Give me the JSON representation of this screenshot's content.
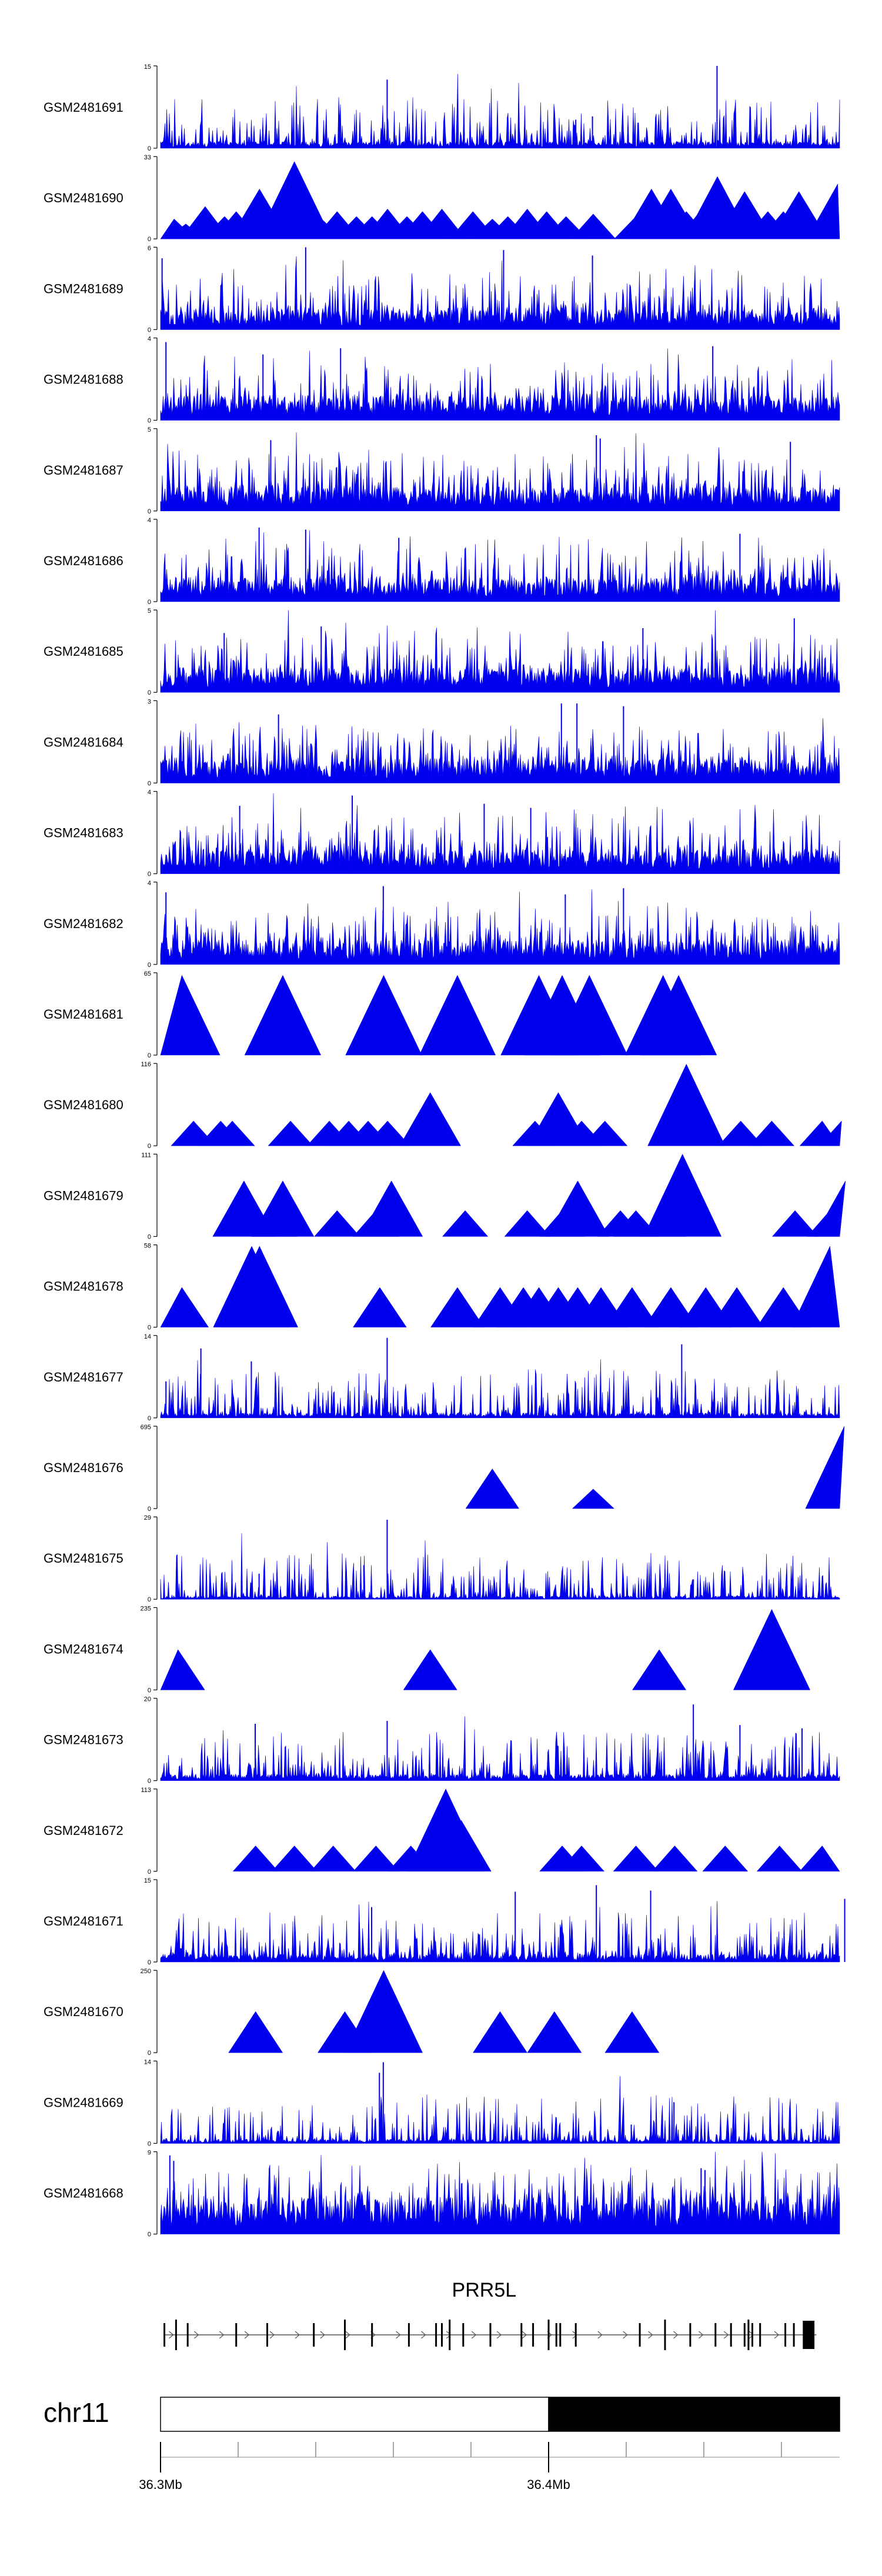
{
  "colors": {
    "signal": "#0000EE",
    "axis": "#000000",
    "gene": "#000000",
    "intron": "#555555",
    "chrom_band_dark": "#000000",
    "chrom_band_light": "#ffffff",
    "tick": "#888888"
  },
  "chart_data": {
    "type": "area",
    "title": "",
    "xlabel": "",
    "ylabel": "",
    "x_range_mb": [
      36.3,
      36.475
    ],
    "series": [
      {
        "name": "GSM2481691",
        "ymax": "15",
        "ylim": [
          0,
          15
        ],
        "mode": "dense",
        "seed": 11,
        "base": 0.08,
        "spikes": [
          [
            36.3584,
            12.5
          ],
          [
            36.4434,
            15
          ],
          [
            36.4113,
            5.8
          ],
          [
            36.407,
            5.2
          ]
        ]
      },
      {
        "name": "GSM2481690",
        "ymax": "33",
        "ylim": [
          0,
          33
        ],
        "mode": "peaks",
        "peaks": [
          [
            36.3035,
            8
          ],
          [
            36.3065,
            6
          ],
          [
            36.3085,
            5
          ],
          [
            36.3115,
            13
          ],
          [
            36.3145,
            4
          ],
          [
            36.3165,
            9
          ],
          [
            36.3195,
            11
          ],
          [
            36.3225,
            6
          ],
          [
            36.3255,
            20
          ],
          [
            36.3305,
            7
          ],
          [
            36.3345,
            31
          ],
          [
            36.3375,
            12
          ],
          [
            36.3415,
            8
          ],
          [
            36.3455,
            11
          ],
          [
            36.3505,
            9
          ],
          [
            36.3545,
            9
          ],
          [
            36.3585,
            12
          ],
          [
            36.3635,
            9
          ],
          [
            36.3675,
            11
          ],
          [
            36.3725,
            12
          ],
          [
            36.3805,
            11
          ],
          [
            36.3855,
            8
          ],
          [
            36.3895,
            9
          ],
          [
            36.3945,
            12
          ],
          [
            36.3995,
            11
          ],
          [
            36.4045,
            9
          ],
          [
            36.4115,
            10
          ],
          [
            36.4225,
            9
          ],
          [
            36.4265,
            20
          ],
          [
            36.4315,
            20
          ],
          [
            36.4355,
            11
          ],
          [
            36.4395,
            12
          ],
          [
            36.4435,
            25
          ],
          [
            36.4465,
            11
          ],
          [
            36.4505,
            19
          ],
          [
            36.4565,
            11
          ],
          [
            36.4605,
            11
          ],
          [
            36.4645,
            19
          ],
          [
            36.4705,
            9
          ],
          [
            36.4745,
            22
          ]
        ]
      },
      {
        "name": "GSM2481689",
        "ymax": "6",
        "ylim": [
          0,
          6
        ],
        "mode": "dense",
        "seed": 23,
        "base": 0.25,
        "spikes": [
          [
            36.3374,
            6
          ],
          [
            36.3884,
            5.8
          ],
          [
            36.4113,
            5.4
          ],
          [
            36.3004,
            5.2
          ]
        ]
      },
      {
        "name": "GSM2481688",
        "ymax": "4",
        "ylim": [
          0,
          4
        ],
        "mode": "dense",
        "seed": 31,
        "base": 0.3,
        "spikes": [
          [
            36.3014,
            3.8
          ],
          [
            36.3464,
            3.5
          ],
          [
            36.4423,
            3.6
          ],
          [
            36.3264,
            3.2
          ]
        ]
      },
      {
        "name": "GSM2481687",
        "ymax": "5",
        "ylim": [
          0,
          5
        ],
        "mode": "dense",
        "seed": 37,
        "base": 0.3,
        "spikes": [
          [
            36.4123,
            4.6
          ],
          [
            36.4133,
            4.4
          ],
          [
            36.3284,
            4.3
          ],
          [
            36.4623,
            4.2
          ]
        ]
      },
      {
        "name": "GSM2481686",
        "ymax": "4",
        "ylim": [
          0,
          4
        ],
        "mode": "dense",
        "seed": 41,
        "base": 0.3,
        "spikes": [
          [
            36.3254,
            3.6
          ],
          [
            36.3374,
            3.5
          ],
          [
            36.4493,
            3.3
          ],
          [
            36.3614,
            3.1
          ]
        ]
      },
      {
        "name": "GSM2481685",
        "ymax": "5",
        "ylim": [
          0,
          5
        ],
        "mode": "dense",
        "seed": 43,
        "base": 0.3,
        "spikes": [
          [
            36.4633,
            4.5
          ],
          [
            36.3414,
            4.0
          ],
          [
            36.4243,
            3.9
          ],
          [
            36.3164,
            3.6
          ]
        ]
      },
      {
        "name": "GSM2481684",
        "ymax": "3",
        "ylim": [
          0,
          3
        ],
        "mode": "dense",
        "seed": 47,
        "base": 0.3,
        "spikes": [
          [
            36.4033,
            2.9
          ],
          [
            36.4073,
            2.9
          ],
          [
            36.4193,
            2.8
          ],
          [
            36.3304,
            2.5
          ]
        ]
      },
      {
        "name": "GSM2481683",
        "ymax": "4",
        "ylim": [
          0,
          4
        ],
        "mode": "dense",
        "seed": 53,
        "base": 0.3,
        "spikes": [
          [
            36.3494,
            3.8
          ],
          [
            36.3834,
            3.4
          ],
          [
            36.3954,
            3.2
          ],
          [
            36.3204,
            3.3
          ]
        ]
      },
      {
        "name": "GSM2481682",
        "ymax": "4",
        "ylim": [
          0,
          4
        ],
        "mode": "dense",
        "seed": 59,
        "base": 0.3,
        "spikes": [
          [
            36.3574,
            3.8
          ],
          [
            36.4193,
            3.7
          ],
          [
            36.4043,
            3.4
          ],
          [
            36.3014,
            3.5
          ]
        ]
      },
      {
        "name": "GSM2481681",
        "ymax": "65",
        "ylim": [
          0,
          65
        ],
        "mode": "peaks",
        "peaks": [
          [
            36.3055,
            63
          ],
          [
            36.3315,
            63
          ],
          [
            36.3575,
            63
          ],
          [
            36.3765,
            63
          ],
          [
            36.3975,
            63
          ],
          [
            36.4035,
            63
          ],
          [
            36.4105,
            63
          ],
          [
            36.4295,
            63
          ],
          [
            36.4335,
            63
          ]
        ]
      },
      {
        "name": "GSM2481680",
        "ymax": "116",
        "ylim": [
          0,
          116
        ],
        "mode": "peaks",
        "peaks": [
          [
            36.3085,
            35
          ],
          [
            36.3155,
            35
          ],
          [
            36.3185,
            35
          ],
          [
            36.3335,
            35
          ],
          [
            36.3435,
            35
          ],
          [
            36.3485,
            35
          ],
          [
            36.3535,
            35
          ],
          [
            36.3585,
            35
          ],
          [
            36.3695,
            75
          ],
          [
            36.3965,
            35
          ],
          [
            36.4025,
            75
          ],
          [
            36.4085,
            35
          ],
          [
            36.4145,
            35
          ],
          [
            36.4355,
            115
          ],
          [
            36.4495,
            35
          ],
          [
            36.4575,
            35
          ],
          [
            36.4705,
            35
          ],
          [
            36.4755,
            35
          ]
        ]
      },
      {
        "name": "GSM2481679",
        "ymax": "111",
        "ylim": [
          0,
          111
        ],
        "mode": "peaks",
        "peaks": [
          [
            36.3215,
            75
          ],
          [
            36.3295,
            35
          ],
          [
            36.3315,
            75
          ],
          [
            36.3455,
            35
          ],
          [
            36.3555,
            35
          ],
          [
            36.3595,
            75
          ],
          [
            36.3785,
            35
          ],
          [
            36.3945,
            35
          ],
          [
            36.4035,
            35
          ],
          [
            36.4075,
            75
          ],
          [
            36.4185,
            35
          ],
          [
            36.4225,
            35
          ],
          [
            36.4295,
            35
          ],
          [
            36.4345,
            111
          ],
          [
            36.4635,
            35
          ],
          [
            36.4725,
            35
          ],
          [
            36.4765,
            75
          ]
        ]
      },
      {
        "name": "GSM2481678",
        "ymax": "58",
        "ylim": [
          0,
          58
        ],
        "mode": "peaks",
        "peaks": [
          [
            36.3055,
            28
          ],
          [
            36.3235,
            57
          ],
          [
            36.3255,
            57
          ],
          [
            36.3565,
            28
          ],
          [
            36.3765,
            28
          ],
          [
            36.3875,
            28
          ],
          [
            36.3935,
            28
          ],
          [
            36.3975,
            28
          ],
          [
            36.4025,
            28
          ],
          [
            36.4075,
            28
          ],
          [
            36.4135,
            28
          ],
          [
            36.4215,
            28
          ],
          [
            36.4315,
            28
          ],
          [
            36.4405,
            28
          ],
          [
            36.4485,
            28
          ],
          [
            36.4605,
            28
          ],
          [
            36.4725,
            57
          ]
        ]
      },
      {
        "name": "GSM2481677",
        "ymax": "14",
        "ylim": [
          0,
          14
        ],
        "mode": "dense",
        "seed": 61,
        "base": 0.06,
        "spikes": [
          [
            36.3584,
            13.6
          ],
          [
            36.4343,
            12.5
          ],
          [
            36.3104,
            11.8
          ],
          [
            36.3234,
            9.6
          ],
          [
            36.3014,
            6.2
          ]
        ]
      },
      {
        "name": "GSM2481676",
        "ymax": "695",
        "ylim": [
          0,
          695
        ],
        "mode": "peaks",
        "peaks": [
          [
            36.3855,
            335
          ],
          [
            36.4115,
            165
          ],
          [
            36.4762,
            695
          ]
        ]
      },
      {
        "name": "GSM2481675",
        "ymax": "29",
        "ylim": [
          0,
          29
        ],
        "mode": "dense",
        "seed": 67,
        "base": 0.04,
        "spikes": [
          [
            36.3584,
            28
          ],
          [
            36.3524,
            12
          ],
          [
            36.3254,
            9
          ],
          [
            36.4373,
            7
          ]
        ]
      },
      {
        "name": "GSM2481674",
        "ymax": "235",
        "ylim": [
          0,
          235
        ],
        "mode": "peaks",
        "peaks": [
          [
            36.3045,
            115
          ],
          [
            36.3695,
            115
          ],
          [
            36.4285,
            115
          ],
          [
            36.4575,
            230
          ]
        ]
      },
      {
        "name": "GSM2481673",
        "ymax": "20",
        "ylim": [
          0,
          20
        ],
        "mode": "dense",
        "seed": 71,
        "base": 0.08,
        "spikes": [
          [
            36.4373,
            18.5
          ],
          [
            36.3584,
            14.5
          ],
          [
            36.4493,
            13.5
          ],
          [
            36.3244,
            13.8
          ],
          [
            36.4653,
            12.7
          ]
        ]
      },
      {
        "name": "GSM2481672",
        "ymax": "113",
        "ylim": [
          0,
          113
        ],
        "mode": "peaks",
        "peaks": [
          [
            36.3245,
            35
          ],
          [
            36.3345,
            35
          ],
          [
            36.3445,
            35
          ],
          [
            36.3555,
            35
          ],
          [
            36.3645,
            35
          ],
          [
            36.3735,
            113
          ],
          [
            36.3775,
            70
          ],
          [
            36.4035,
            35
          ],
          [
            36.4085,
            35
          ],
          [
            36.4225,
            35
          ],
          [
            36.4325,
            35
          ],
          [
            36.4455,
            35
          ],
          [
            36.4595,
            35
          ],
          [
            36.4705,
            35
          ]
        ]
      },
      {
        "name": "GSM2481671",
        "ymax": "15",
        "ylim": [
          0,
          15
        ],
        "mode": "dense",
        "seed": 73,
        "base": 0.1,
        "spikes": [
          [
            36.4123,
            14
          ],
          [
            36.4263,
            13
          ],
          [
            36.4763,
            11.5
          ],
          [
            36.3914,
            12.8
          ],
          [
            36.3544,
            10
          ]
        ]
      },
      {
        "name": "GSM2481670",
        "ymax": "250",
        "ylim": [
          0,
          250
        ],
        "mode": "peaks",
        "peaks": [
          [
            36.3245,
            125
          ],
          [
            36.3475,
            125
          ],
          [
            36.3575,
            250
          ],
          [
            36.3875,
            125
          ],
          [
            36.4015,
            125
          ],
          [
            36.4215,
            125
          ]
        ]
      },
      {
        "name": "GSM2481669",
        "ymax": "14",
        "ylim": [
          0,
          14
        ],
        "mode": "dense",
        "seed": 79,
        "base": 0.05,
        "spikes": [
          [
            36.3574,
            13.8
          ],
          [
            36.3564,
            12
          ],
          [
            36.4323,
            7
          ],
          [
            36.4213,
            3.2
          ]
        ]
      },
      {
        "name": "GSM2481668",
        "ymax": "9",
        "ylim": [
          0,
          9
        ],
        "mode": "dense",
        "seed": 83,
        "base": 0.45,
        "spikes": [
          [
            36.3024,
            8.6
          ],
          [
            36.3034,
            8.0
          ],
          [
            36.4393,
            7.2
          ],
          [
            36.4403,
            7.0
          ]
        ]
      }
    ],
    "gene": {
      "name": "PRR5L",
      "strand": "+",
      "exons": [
        36.301,
        36.304,
        36.307,
        36.3195,
        36.3275,
        36.3395,
        36.3475,
        36.3545,
        36.364,
        36.371,
        36.3725,
        36.3745,
        36.378,
        36.385,
        36.393,
        36.396,
        36.4,
        36.402,
        36.403,
        36.407,
        36.4235,
        36.43,
        36.4365,
        36.443,
        36.447,
        36.4505,
        36.4515,
        36.4525,
        36.4545,
        36.461,
        36.4632
      ],
      "thick_end": [
        36.4655,
        36.4685
      ],
      "extent": [
        36.3008,
        36.469
      ]
    },
    "chromosome": {
      "name": "chr11",
      "light_band": [
        36.3,
        36.4
      ],
      "dark_band": [
        36.4,
        36.475
      ],
      "minor_ticks": [
        36.3,
        36.32,
        36.34,
        36.36,
        36.38,
        36.4,
        36.42,
        36.44,
        36.46
      ],
      "tick_labels": [
        {
          "pos": 36.3,
          "label": "36.3Mb"
        },
        {
          "pos": 36.4,
          "label": "36.4Mb"
        }
      ]
    }
  }
}
